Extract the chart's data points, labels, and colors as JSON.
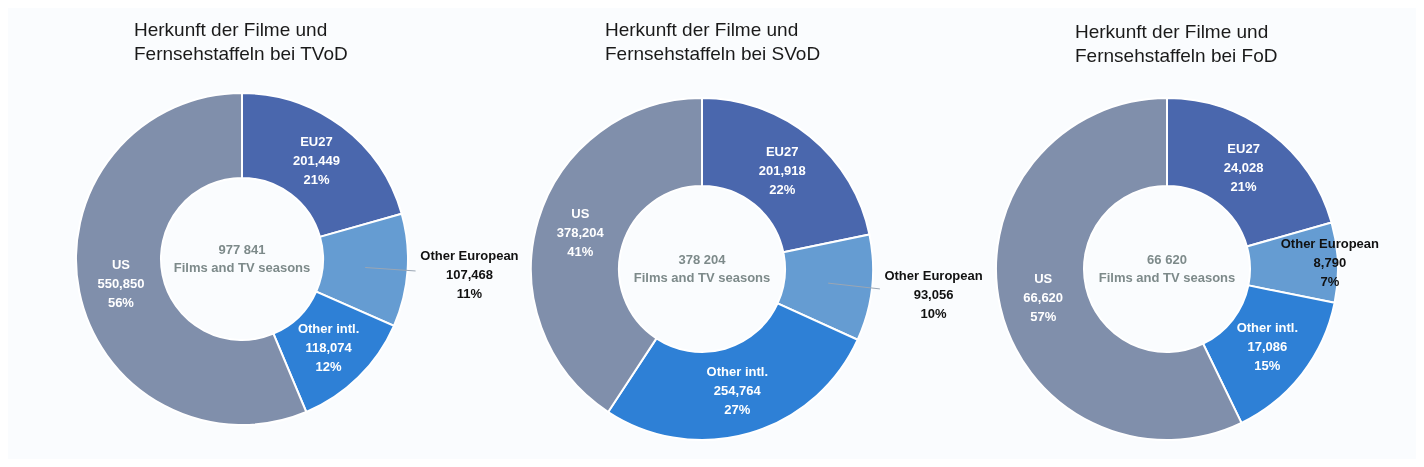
{
  "chart_data": [
    {
      "type": "donut",
      "title": "Herkunft der Filme und Fernsehstaffeln bei TVoD",
      "categories": [
        "EU27",
        "Other European",
        "Other intl.",
        "US"
      ],
      "values": [
        201449,
        107468,
        118074,
        550850
      ],
      "colors": [
        "#4a67ad",
        "#659cd2",
        "#2e80d6",
        "#808fab"
      ],
      "value_labels": [
        "201,449\n21%",
        "107,468\n11%",
        "118,074\n12%",
        "550,850\n56%"
      ],
      "annotations": [
        "977 841",
        "Films and TV seasons"
      ]
    },
    {
      "type": "donut",
      "title": "Herkunft der Filme und Fernsehstaffeln bei SVoD",
      "categories": [
        "EU27",
        "Other European",
        "Other intl.",
        "US"
      ],
      "values": [
        201918,
        93056,
        254764,
        378204
      ],
      "colors": [
        "#4a67ad",
        "#659cd2",
        "#2e80d6",
        "#808fab"
      ],
      "value_labels": [
        "201,918\n22%",
        "93,056\n10%",
        "254,764\n27%",
        "378,204\n41%"
      ],
      "annotations": [
        "378 204",
        "Films and TV seasons"
      ]
    },
    {
      "type": "donut",
      "title": "Herkunft der Filme und Fernsehstaffeln bei FoD",
      "categories": [
        "EU27",
        "Other European",
        "Other intl.",
        "US"
      ],
      "values": [
        24028,
        8790,
        17086,
        66620
      ],
      "colors": [
        "#4a67ad",
        "#659cd2",
        "#2e80d6",
        "#808fab"
      ],
      "value_labels": [
        "24,028\n21%",
        "8,790\n7%",
        "17,086\n15%",
        "66,620\n57%"
      ],
      "annotations": [
        "66 620",
        "Films and TV seasons"
      ]
    }
  ]
}
